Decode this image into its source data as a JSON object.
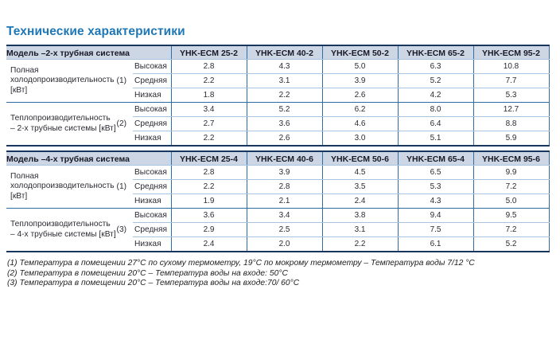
{
  "title": "Технические характеристики",
  "colors": {
    "title_blue": "#1f78b5",
    "header_bg": "#ccd6e4",
    "border_navy": "#17375e",
    "line_medium": "#2e6da4",
    "line_light": "#a6c4df"
  },
  "sections": [
    {
      "model_label": "Модель –2-х трубная система",
      "columns": [
        "YHK-ECM 25-2",
        "YHK-ECM 40-2",
        "YHK-ECM 50-2",
        "YHK-ECM 65-2",
        "YHK-ECM 95-2"
      ],
      "groups": [
        {
          "label": "Полная холодопроизводительность [кВт]",
          "note_ref": "(1)",
          "rows": [
            {
              "speed": "Высокая",
              "values": [
                "2.8",
                "4.3",
                "5.0",
                "6.3",
                "10.8"
              ]
            },
            {
              "speed": "Средняя",
              "values": [
                "2.2",
                "3.1",
                "3.9",
                "5.2",
                "7.7"
              ]
            },
            {
              "speed": "Низкая",
              "values": [
                "1.8",
                "2.2",
                "2.6",
                "4.2",
                "5.3"
              ]
            }
          ]
        },
        {
          "label": "Теплопроизводительность – 2-х трубные системы [кВт]",
          "note_ref": "(2)",
          "rows": [
            {
              "speed": "Высокая",
              "values": [
                "3.4",
                "5.2",
                "6.2",
                "8.0",
                "12.7"
              ]
            },
            {
              "speed": "Средняя",
              "values": [
                "2.7",
                "3.6",
                "4.6",
                "6.4",
                "8.8"
              ]
            },
            {
              "speed": "Низкая",
              "values": [
                "2.2",
                "2.6",
                "3.0",
                "5.1",
                "5.9"
              ]
            }
          ]
        }
      ]
    },
    {
      "model_label": "Модель –4-х трубная система",
      "columns": [
        "YHK-ECM 25-4",
        "YHK-ECM 40-6",
        "YHK-ECM 50-6",
        "YHK-ECM 65-4",
        "YHK-ECM 95-6"
      ],
      "groups": [
        {
          "label": "Полная холодопроизводительность [кВт]",
          "note_ref": "(1)",
          "rows": [
            {
              "speed": "Высокая",
              "values": [
                "2.8",
                "3.9",
                "4.5",
                "6.5",
                "9.9"
              ]
            },
            {
              "speed": "Средняя",
              "values": [
                "2.2",
                "2.8",
                "3.5",
                "5.3",
                "7.2"
              ]
            },
            {
              "speed": "Низкая",
              "values": [
                "1.9",
                "2.1",
                "2.4",
                "4.3",
                "5.0"
              ]
            }
          ]
        },
        {
          "label": "Теплопроизводительность – 4-х трубные системы [кВт]",
          "note_ref": "(3)",
          "rows": [
            {
              "speed": "Высокая",
              "values": [
                "3.6",
                "3.4",
                "3.8",
                "9.4",
                "9.5"
              ]
            },
            {
              "speed": "Средняя",
              "values": [
                "2.9",
                "2.5",
                "3.1",
                "7.5",
                "7.2"
              ]
            },
            {
              "speed": "Низкая",
              "values": [
                "2.4",
                "2.0",
                "2.2",
                "6.1",
                "5.2"
              ]
            }
          ]
        }
      ]
    }
  ],
  "footnotes": [
    "(1) Температура в помещении 27°C по сухому термометру, 19°C по мокрому термометру – Температура воды 7/12 °C",
    "(2) Температура в помещении 20°C – Температура воды на входе: 50°C",
    "(3) Температура в помещении 20°C – Температура воды на входе:70/ 60°C"
  ]
}
